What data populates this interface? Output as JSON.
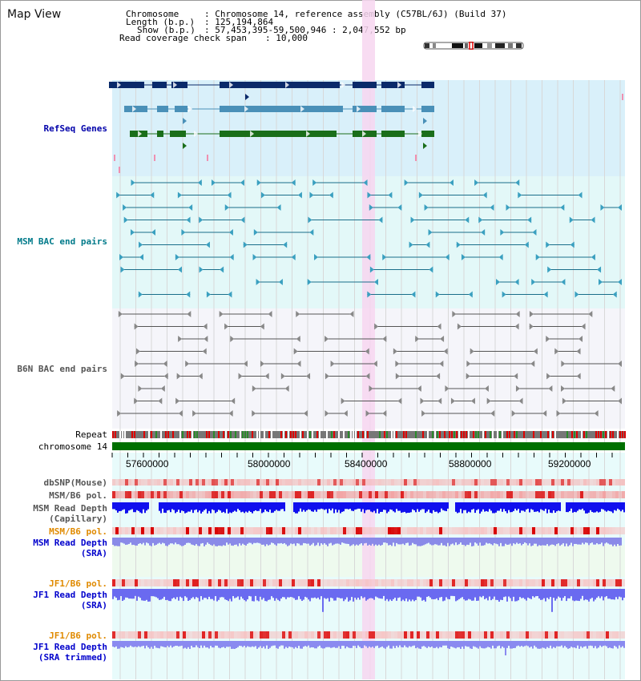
{
  "map_title": "Map View",
  "info": {
    "chromosome_label": "Chromosome",
    "chromosome_value": ": Chromosome 14, reference assembly (C57BL/6J) (Build 37)",
    "length_label": "Length (b.p.)",
    "length_value": ": 125,194,864",
    "show_label": "Show (b.p.)",
    "show_value": ": 57,453,395-59,500,946 : 2,047,552 bp",
    "coverage_label": "Read coverage check span",
    "coverage_value": ": 10,000"
  },
  "tracks": {
    "refseq": "RefSeq Genes",
    "msm_bac": "MSM BAC end pairs",
    "b6n_bac": "B6N BAC end pairs",
    "repeat": "Repeat",
    "chromosome": "chromosome 14",
    "dbsnp": "dbSNP(Mouse)",
    "msm_b6_pol_1": "MSM/B6 pol.",
    "msm_depth_cap_1": "MSM Read Depth",
    "msm_depth_cap_2": "(Capillary)",
    "msm_b6_pol_2": "MSM/B6 pol.",
    "msm_depth_sra_1": "MSM Read Depth",
    "msm_depth_sra_2": "(SRA)",
    "jf1_b6_pol_1": "JF1/B6 pol.",
    "jf1_depth_sra_1": "JF1 Read Depth",
    "jf1_depth_sra_2": "(SRA)",
    "jf1_b6_pol_2": "JF1/B6 pol.",
    "jf1_depth_trim_1": "JF1 Read Depth",
    "jf1_depth_trim_2": "(SRA trimmed)"
  },
  "axis": {
    "ticks": [
      "57600000",
      "58000000",
      "58400000",
      "58800000",
      "59200000"
    ]
  },
  "colors": {
    "refseq_bg": "#d9f0fa",
    "msm_bg": "#e3f8f8",
    "b6n_bg": "#f5f5fa",
    "highlight": "#f7d6f0",
    "refseq_label": "#0000aa",
    "msm_label": "#007a8a",
    "b6n_label": "#555555",
    "pol_orange": "#e08a00",
    "depth_blue": "#0000cc"
  }
}
